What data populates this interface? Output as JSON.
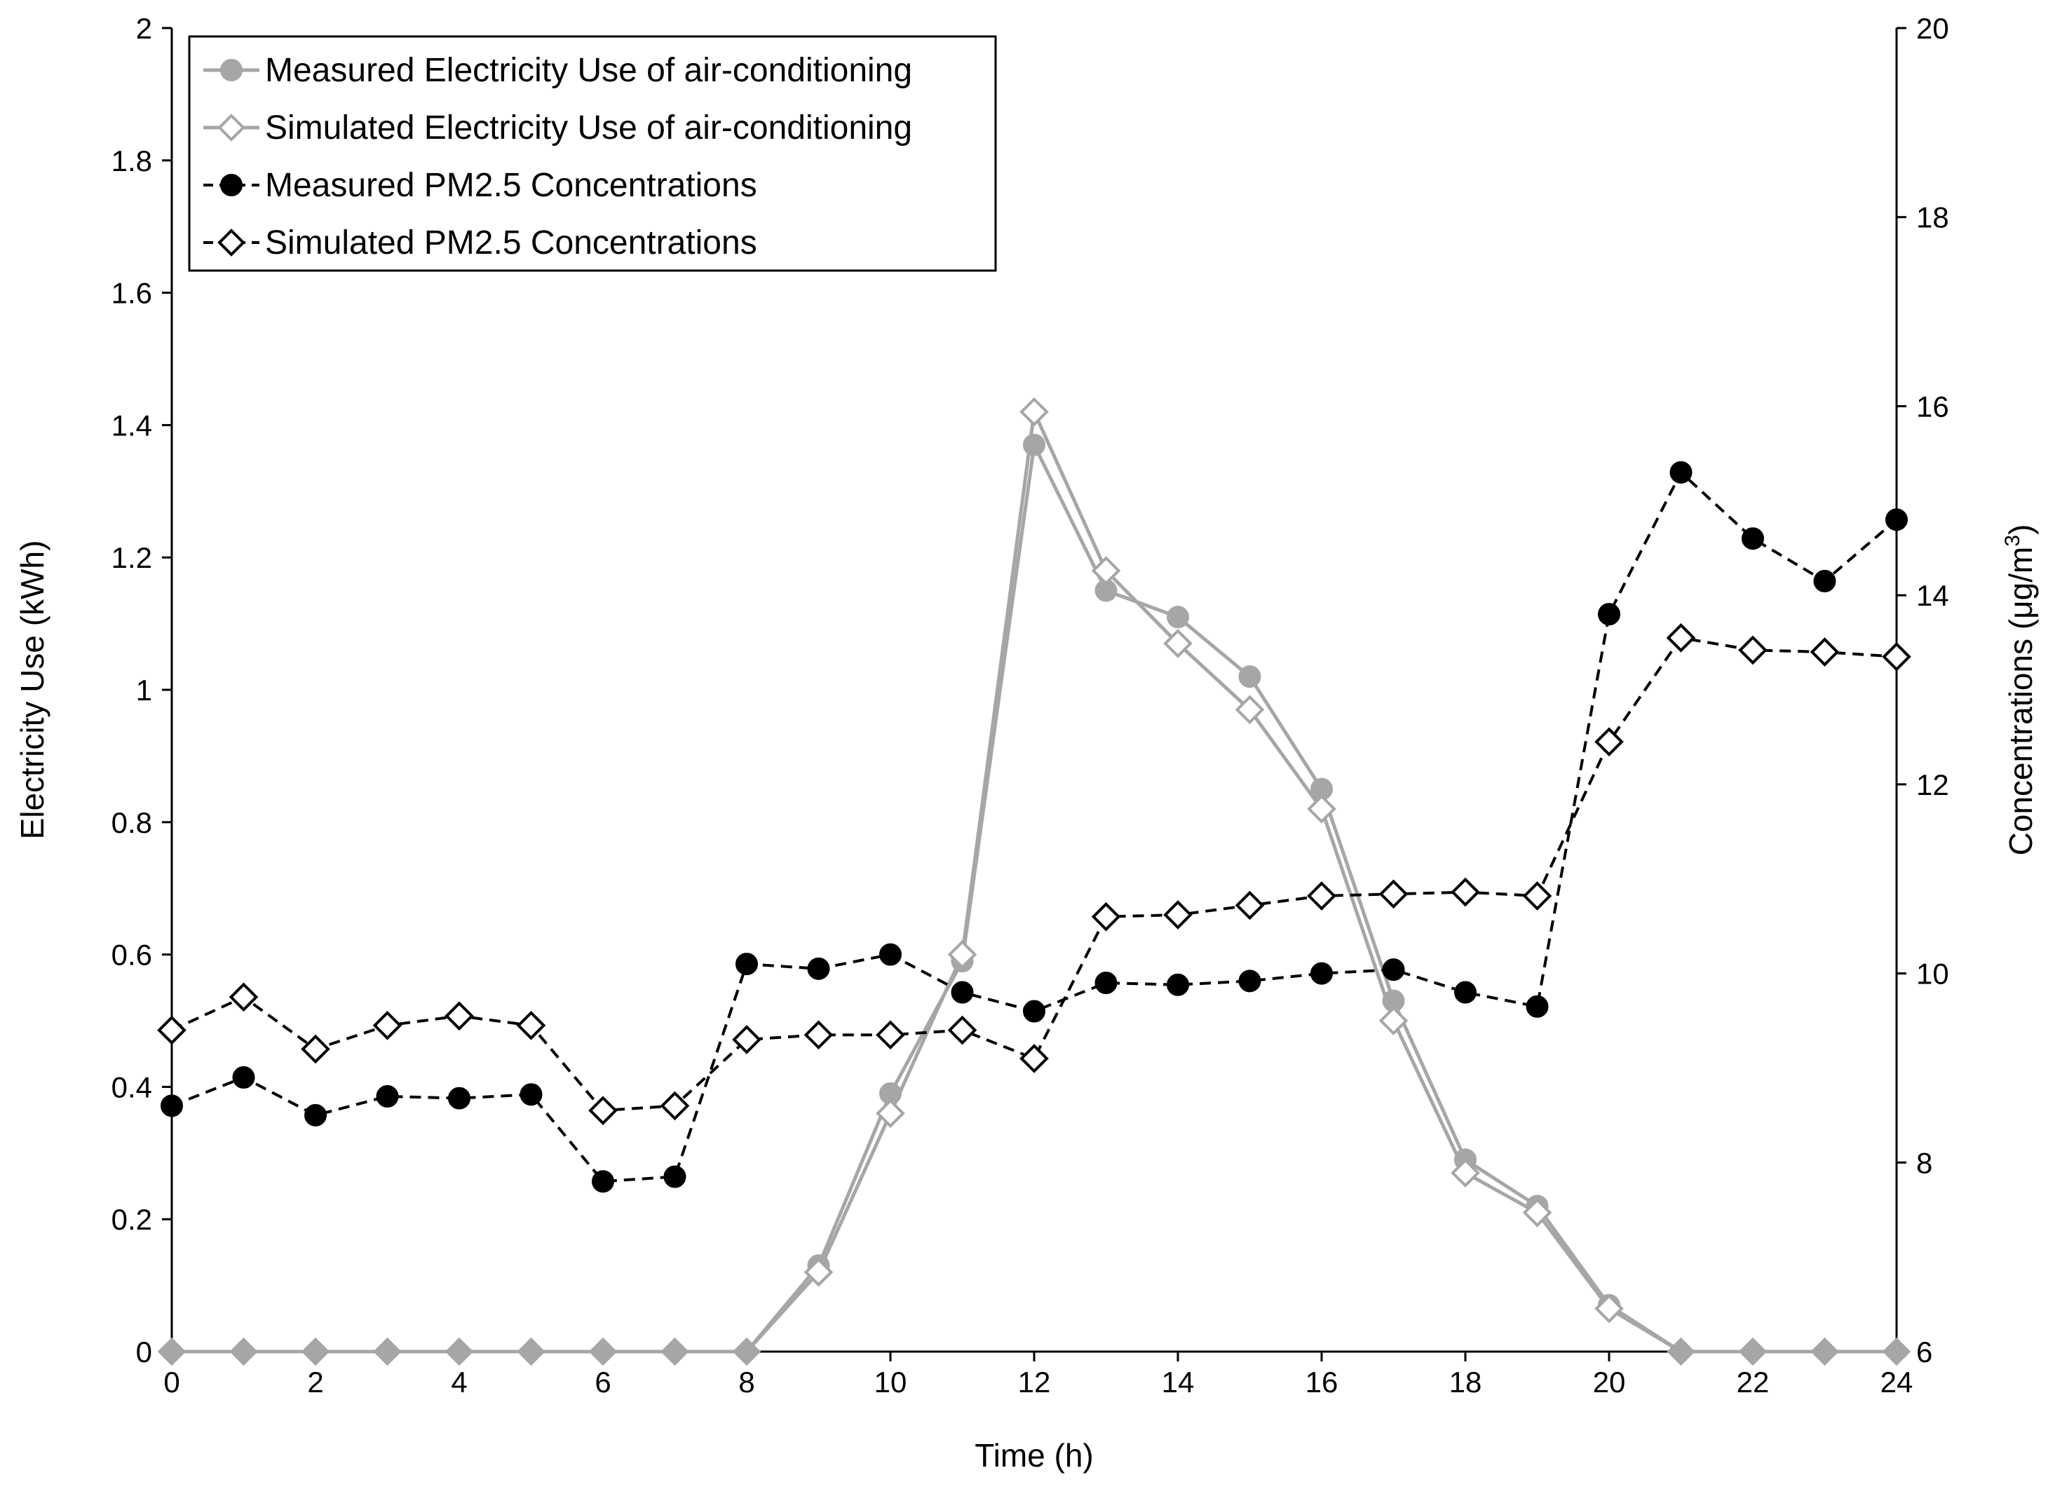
{
  "chart_data": {
    "type": "line",
    "x": [
      0,
      1,
      2,
      3,
      4,
      5,
      6,
      7,
      8,
      9,
      10,
      11,
      12,
      13,
      14,
      15,
      16,
      17,
      18,
      19,
      20,
      21,
      22,
      23,
      24
    ],
    "xlabel": "Time (h)",
    "xlim": [
      0,
      24
    ],
    "xticks": [
      "0",
      "2",
      "4",
      "6",
      "8",
      "10",
      "12",
      "14",
      "16",
      "18",
      "20",
      "22",
      "24"
    ],
    "ylabel_left": "Electricity Use (kWh)",
    "ylim_left": [
      0,
      2
    ],
    "yticks_left": [
      "0",
      "0.2",
      "0.4",
      "0.6",
      "0.8",
      "1",
      "1.2",
      "1.4",
      "1.6",
      "1.8",
      "2"
    ],
    "ylabel_right_prefix": "Concentrations (μg/m",
    "ylabel_right_sup": "3",
    "ylabel_right_suffix": ")",
    "ylim_right": [
      6,
      20
    ],
    "yticks_right": [
      "6",
      "8",
      "10",
      "12",
      "14",
      "16",
      "18",
      "20"
    ],
    "legend_position": "top-left",
    "series": [
      {
        "name": "Measured Electricity Use of air-conditioning",
        "axis": "left",
        "color": "#a6a6a6",
        "marker": "circle-filled",
        "line": "solid",
        "values": [
          0,
          0,
          0,
          0,
          0,
          0,
          0,
          0,
          0,
          0.13,
          0.39,
          0.59,
          1.37,
          1.15,
          1.11,
          1.02,
          0.85,
          0.53,
          0.29,
          0.22,
          0.07,
          0,
          0,
          0,
          0
        ]
      },
      {
        "name": "Simulated Electricity Use of air-conditioning",
        "axis": "left",
        "color": "#a6a6a6",
        "marker": "diamond-open",
        "line": "solid",
        "values": [
          0,
          0,
          0,
          0,
          0,
          0,
          0,
          0,
          0,
          0.12,
          0.36,
          0.6,
          1.42,
          1.18,
          1.07,
          0.97,
          0.82,
          0.5,
          0.27,
          0.21,
          0.065,
          0,
          0,
          0,
          0
        ]
      },
      {
        "name": "Measured PM2.5 Concentrations",
        "axis": "right",
        "color": "#000000",
        "marker": "circle-filled",
        "line": "dashed",
        "values": [
          8.6,
          8.9,
          8.5,
          8.7,
          8.68,
          8.72,
          7.8,
          7.85,
          10.1,
          10.05,
          10.2,
          9.8,
          9.6,
          9.9,
          9.88,
          9.92,
          10.0,
          10.04,
          9.8,
          9.65,
          13.8,
          15.3,
          14.6,
          14.15,
          14.8
        ]
      },
      {
        "name": "Simulated PM2.5 Concentrations",
        "axis": "right",
        "color": "#000000",
        "marker": "diamond-open",
        "line": "dashed",
        "values": [
          9.4,
          9.75,
          9.2,
          9.45,
          9.55,
          9.45,
          8.55,
          8.6,
          9.3,
          9.35,
          9.35,
          9.4,
          9.1,
          10.6,
          10.62,
          10.72,
          10.82,
          10.84,
          10.86,
          10.82,
          12.45,
          13.55,
          13.42,
          13.4,
          13.35
        ]
      }
    ]
  }
}
